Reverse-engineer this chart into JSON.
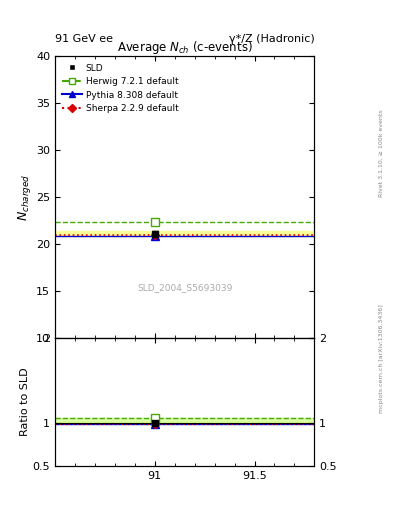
{
  "title_top_left": "91 GeV ee",
  "title_top_right": "γ*/Z (Hadronic)",
  "main_title": "Average $N_{ch}$ (c-events)",
  "ylabel_main": "$N_{charged}$",
  "ylabel_ratio": "Ratio to SLD",
  "right_label_top": "Rivet 3.1.10, ≥ 100k events",
  "right_label_bottom": "mcplots.cern.ch [arXiv:1306.3436]",
  "watermark": "SLD_2004_S5693039",
  "xlim": [
    90.5,
    91.8
  ],
  "ylim_main": [
    10,
    40
  ],
  "ylim_ratio": [
    0.5,
    2.0
  ],
  "xticks": [
    91.0,
    91.5
  ],
  "xticklabels": [
    "91",
    "91.5"
  ],
  "yticks_main": [
    10,
    15,
    20,
    25,
    30,
    35,
    40
  ],
  "yticks_ratio": [
    0.5,
    1.0,
    2.0
  ],
  "yticklabels_ratio": [
    "0.5",
    "1",
    "2"
  ],
  "data_x": 91.0,
  "sld_y": 21.1,
  "sld_yerr": 0.25,
  "herwig_y": 22.3,
  "herwig_ratio": 1.056,
  "pythia_y": 20.9,
  "pythia_ratio": 0.99,
  "sherpa_y": 20.95,
  "sherpa_ratio": 0.993,
  "color_sld": "#000000",
  "color_herwig": "#44aa00",
  "color_pythia": "#0000cc",
  "color_sherpa": "#dd0000",
  "band_color_yellow": "#ffff99",
  "band_color_green": "#ccff88",
  "line_xmin": 90.5,
  "line_xmax": 91.8
}
